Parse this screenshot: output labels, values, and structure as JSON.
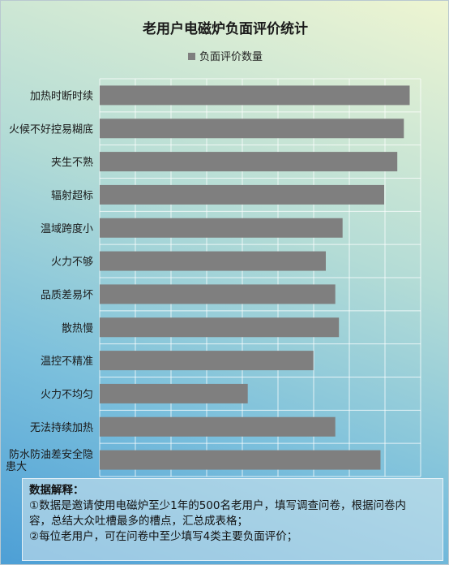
{
  "chart_data": {
    "type": "bar",
    "orientation": "horizontal",
    "title": "老用户电磁炉负面评价统计",
    "legend": "负面评价数量",
    "legend_position": "top",
    "grid": true,
    "xlim": [
      0,
      440
    ],
    "categories": [
      "加热时断时续",
      "火候不好控易糊底",
      "夹生不熟",
      "辐射超标",
      "温域跨度小",
      "火力不够",
      "品质差易坏",
      "散热慢",
      "温控不精准",
      "火力不均匀",
      "无法持续加热",
      "防水防油差安全隐患大"
    ],
    "category_lines": [
      [
        "加热时断时续"
      ],
      [
        "火候不好控易糊底"
      ],
      [
        "夹生不熟"
      ],
      [
        "辐射超标"
      ],
      [
        "温域跨度小"
      ],
      [
        "火力不够"
      ],
      [
        "品质差易坏"
      ],
      [
        "散热慢"
      ],
      [
        "温控不精准"
      ],
      [
        "火力不均匀"
      ],
      [
        "无法持续加热"
      ],
      [
        "防水防油差安全隐",
        "患大"
      ]
    ],
    "values": [
      425,
      417,
      408,
      390,
      333,
      310,
      323,
      328,
      293,
      203,
      323,
      385
    ],
    "bar_color": "#7f7f7f"
  },
  "notes": {
    "title": "数据解释：",
    "lines": [
      "①数据是邀请使用电磁炉至少1年的500名老用户，填写调查问卷，根据问卷内",
      "容，总结大众吐槽最多的槽点，汇总成表格；",
      "②每位老用户，可在问卷中至少填写4类主要负面评价；"
    ]
  }
}
